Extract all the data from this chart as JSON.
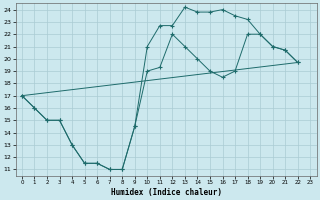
{
  "xlabel": "Humidex (Indice chaleur)",
  "background_color": "#cce8ee",
  "grid_color": "#aaccd4",
  "line_color": "#1e6b6b",
  "xlim": [
    -0.5,
    23.5
  ],
  "ylim": [
    10.5,
    24.5
  ],
  "xticks": [
    0,
    1,
    2,
    3,
    4,
    5,
    6,
    7,
    8,
    9,
    10,
    11,
    12,
    13,
    14,
    15,
    16,
    17,
    18,
    19,
    20,
    21,
    22,
    23
  ],
  "yticks": [
    11,
    12,
    13,
    14,
    15,
    16,
    17,
    18,
    19,
    20,
    21,
    22,
    23,
    24
  ],
  "curve1_x": [
    0,
    1,
    2,
    3,
    4,
    5,
    6,
    7,
    8,
    9,
    10,
    11,
    12,
    13,
    14,
    15,
    16,
    17,
    18,
    19,
    20,
    21,
    22
  ],
  "curve1_y": [
    17.0,
    16.0,
    15.0,
    15.0,
    13.0,
    11.5,
    11.5,
    11.0,
    11.0,
    14.5,
    21.0,
    22.7,
    22.7,
    24.2,
    23.8,
    23.8,
    24.0,
    23.5,
    23.2,
    22.0,
    21.0,
    20.7,
    19.7
  ],
  "curve2_x": [
    0,
    1,
    2,
    3,
    4,
    5,
    6,
    7,
    8,
    9,
    10,
    11,
    12,
    13,
    14,
    15,
    16,
    17,
    18,
    19,
    20,
    21,
    22
  ],
  "curve2_y": [
    17.0,
    16.0,
    15.0,
    15.0,
    13.0,
    11.5,
    11.5,
    11.0,
    11.0,
    14.5,
    19.0,
    19.3,
    22.0,
    21.0,
    20.0,
    19.0,
    18.5,
    19.0,
    22.0,
    22.0,
    21.0,
    20.7,
    19.7
  ],
  "curve3_x": [
    0,
    22
  ],
  "curve3_y": [
    17.0,
    19.7
  ]
}
